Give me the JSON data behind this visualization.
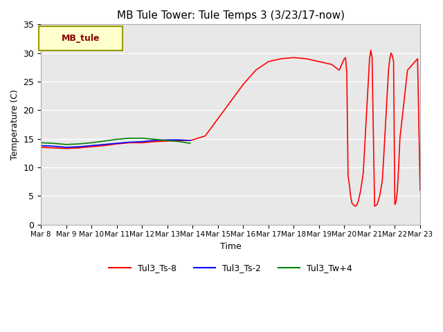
{
  "title": "MB Tule Tower: Tule Temps 3 (3/23/17-now)",
  "xlabel": "Time",
  "ylabel": "Temperature (C)",
  "ylim": [
    0,
    35
  ],
  "yticks": [
    0,
    5,
    10,
    15,
    20,
    25,
    30,
    35
  ],
  "bg_color": "#e8e8e8",
  "fig_color": "#ffffff",
  "legend_label": "MB_tule",
  "legend_bg": "#ffffcc",
  "legend_border": "#999900",
  "ts8_x": [
    8.0,
    8.5,
    9.0,
    9.5,
    10.0,
    10.5,
    11.0,
    11.5,
    12.0,
    12.5,
    13.0,
    13.5,
    13.9,
    14.0,
    14.5,
    15.0,
    15.5,
    16.0,
    16.5,
    17.0,
    17.5,
    18.0,
    18.5,
    19.0,
    19.5,
    19.8,
    20.0,
    20.05,
    20.1,
    20.15,
    20.2,
    20.25,
    20.3,
    20.35,
    20.4,
    20.45,
    20.5,
    20.55,
    20.6,
    20.65,
    20.7,
    20.75,
    20.8,
    20.85,
    20.9,
    20.95,
    21.0,
    21.05,
    21.1,
    21.2,
    21.3,
    21.4,
    21.5,
    21.55,
    21.6,
    21.65,
    21.7,
    21.75,
    21.8,
    21.85,
    21.9,
    21.95,
    22.0,
    22.05,
    22.1,
    22.15,
    22.2,
    22.5,
    22.8,
    22.9,
    23.0
  ],
  "ts8_y": [
    13.5,
    13.4,
    13.3,
    13.4,
    13.6,
    13.8,
    14.1,
    14.3,
    14.3,
    14.5,
    14.6,
    14.7,
    14.7,
    14.8,
    15.5,
    18.5,
    21.5,
    24.5,
    27.0,
    28.5,
    29.0,
    29.2,
    29.0,
    28.5,
    28.0,
    27.0,
    29.0,
    29.2,
    26.5,
    8.5,
    7.0,
    5.0,
    3.8,
    3.5,
    3.3,
    3.2,
    3.5,
    4.0,
    5.0,
    6.0,
    7.5,
    9.0,
    13.0,
    17.0,
    21.0,
    25.0,
    29.0,
    30.5,
    29.2,
    3.2,
    3.5,
    5.0,
    7.5,
    11.0,
    15.0,
    19.0,
    23.0,
    27.0,
    29.0,
    30.0,
    29.5,
    28.5,
    3.5,
    4.0,
    6.0,
    10.0,
    15.0,
    27.0,
    28.5,
    29.0,
    6.0
  ],
  "ts2_x": [
    8.0,
    8.5,
    9.0,
    9.5,
    10.0,
    10.5,
    11.0,
    11.5,
    12.0,
    12.5,
    13.0,
    13.5,
    13.9
  ],
  "ts2_y": [
    13.8,
    13.7,
    13.5,
    13.6,
    13.8,
    14.0,
    14.2,
    14.4,
    14.5,
    14.7,
    14.8,
    14.8,
    14.7
  ],
  "tw4_x": [
    8.0,
    8.5,
    9.0,
    9.5,
    10.0,
    10.5,
    11.0,
    11.5,
    12.0,
    12.5,
    13.0,
    13.5,
    13.9
  ],
  "tw4_y": [
    14.3,
    14.2,
    14.0,
    14.1,
    14.3,
    14.6,
    14.9,
    15.1,
    15.1,
    14.9,
    14.7,
    14.5,
    14.2
  ],
  "xtick_labels": [
    "Mar 8",
    "Mar 9",
    "Mar 10",
    "Mar 11",
    "Mar 12",
    "Mar 13",
    "Mar 14",
    "Mar 15",
    "Mar 16",
    "Mar 17",
    "Mar 18",
    "Mar 19",
    "Mar 20",
    "Mar 21",
    "Mar 22",
    "Mar 23"
  ],
  "xtick_positions": [
    8,
    9,
    10,
    11,
    12,
    13,
    14,
    15,
    16,
    17,
    18,
    19,
    20,
    21,
    22,
    23
  ],
  "xlim": [
    8,
    23
  ]
}
